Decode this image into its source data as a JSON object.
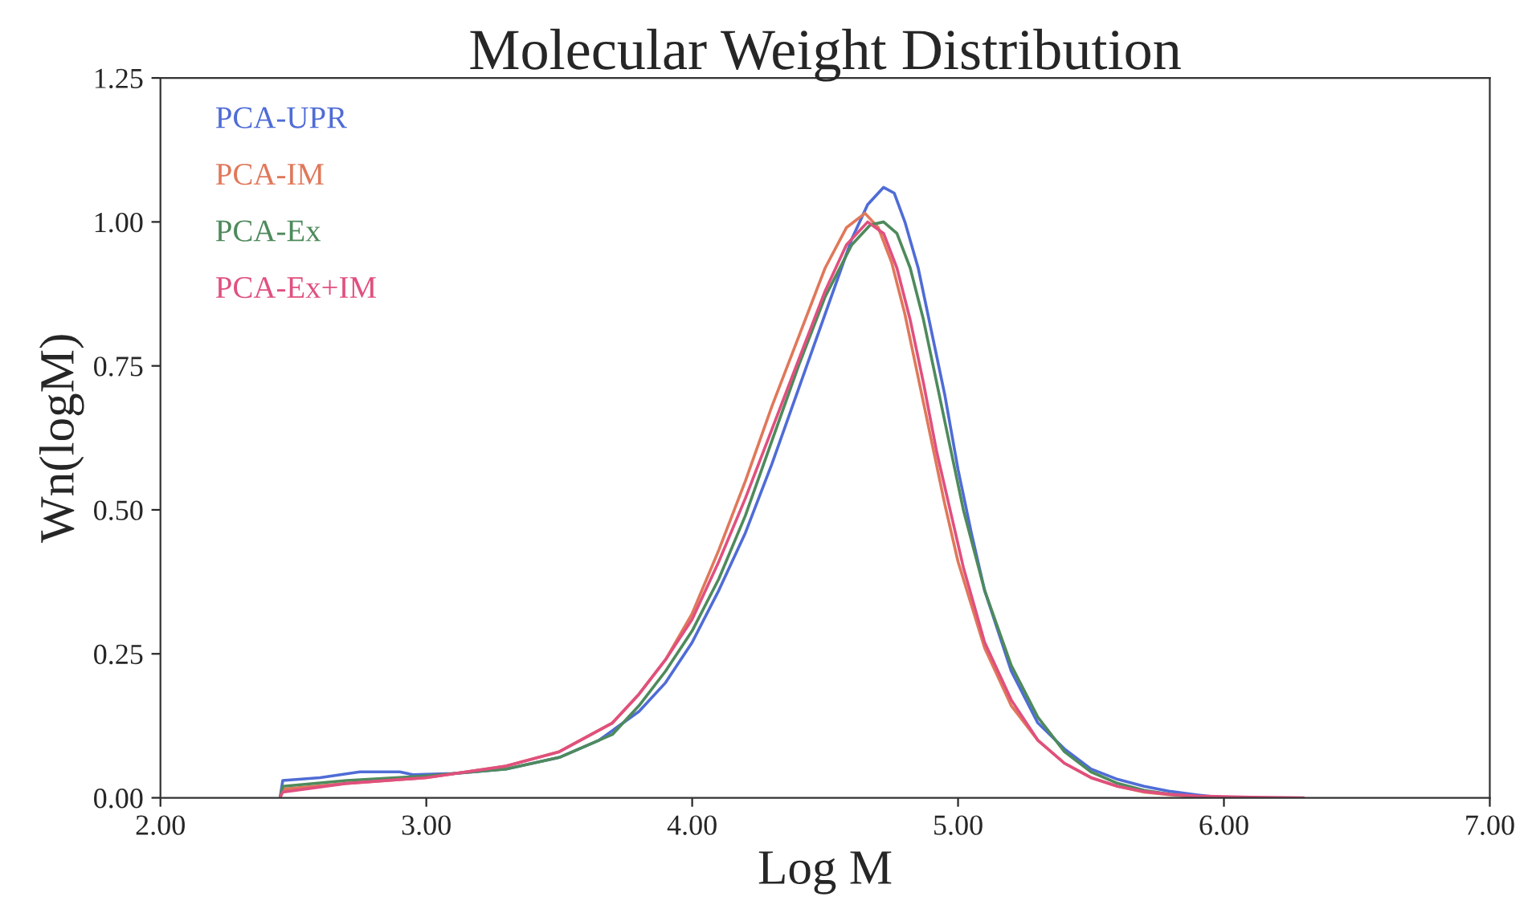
{
  "chart_data": {
    "type": "line",
    "title": "Molecular Weight Distribution",
    "xlabel": "Log M",
    "ylabel": "Wn(logM)",
    "xlim": [
      2,
      7
    ],
    "xticks": [
      {
        "value": 2,
        "label": "2.00"
      },
      {
        "value": 3,
        "label": "3.00"
      },
      {
        "value": 4,
        "label": "4.00"
      },
      {
        "value": 5,
        "label": "5.00"
      },
      {
        "value": 6,
        "label": "6.00"
      },
      {
        "value": 7,
        "label": "7.00"
      }
    ],
    "ylim": [
      0,
      1.25
    ],
    "yticks": [
      {
        "value": 0,
        "label": "0.00"
      },
      {
        "value": 0.25,
        "label": "0.25"
      },
      {
        "value": 0.5,
        "label": "0.50"
      },
      {
        "value": 0.75,
        "label": "0.75"
      },
      {
        "value": 1,
        "label": "1.00"
      },
      {
        "value": 1.25,
        "label": "1.25"
      }
    ],
    "grid": false,
    "legend": "top left",
    "marker": "none",
    "line_style": "solid",
    "series": [
      {
        "name": "PCA-UPR",
        "color": "#4f6cd6",
        "x": [
          2.45,
          2.46,
          2.6,
          2.75,
          2.9,
          2.95,
          3.1,
          3.3,
          3.5,
          3.65,
          3.8,
          3.9,
          4.0,
          4.1,
          4.2,
          4.3,
          4.4,
          4.5,
          4.6,
          4.66,
          4.72,
          4.76,
          4.8,
          4.85,
          4.9,
          4.95,
          5.0,
          5.05,
          5.1,
          5.2,
          5.3,
          5.4,
          5.5,
          5.6,
          5.7,
          5.8,
          5.9,
          6.0
        ],
        "values": [
          0.0,
          0.03,
          0.035,
          0.045,
          0.045,
          0.04,
          0.042,
          0.05,
          0.07,
          0.1,
          0.15,
          0.2,
          0.27,
          0.36,
          0.46,
          0.58,
          0.71,
          0.84,
          0.97,
          1.03,
          1.06,
          1.05,
          1.0,
          0.92,
          0.81,
          0.7,
          0.57,
          0.46,
          0.36,
          0.22,
          0.13,
          0.085,
          0.05,
          0.032,
          0.02,
          0.011,
          0.005,
          0.0
        ]
      },
      {
        "name": "PCA-IM",
        "color": "#e0785a",
        "x": [
          2.45,
          2.46,
          2.7,
          3.0,
          3.3,
          3.5,
          3.7,
          3.8,
          3.9,
          4.0,
          4.1,
          4.2,
          4.3,
          4.4,
          4.5,
          4.58,
          4.65,
          4.7,
          4.75,
          4.8,
          4.85,
          4.9,
          4.95,
          5.0,
          5.1,
          5.2,
          5.3,
          5.4,
          5.5,
          5.6,
          5.7,
          5.8,
          5.9,
          6.0,
          6.1
        ],
        "values": [
          0.0,
          0.015,
          0.025,
          0.035,
          0.055,
          0.08,
          0.13,
          0.18,
          0.24,
          0.32,
          0.43,
          0.55,
          0.68,
          0.8,
          0.92,
          0.99,
          1.015,
          0.99,
          0.93,
          0.84,
          0.73,
          0.62,
          0.51,
          0.41,
          0.26,
          0.16,
          0.1,
          0.06,
          0.035,
          0.02,
          0.01,
          0.005,
          0.002,
          0.001,
          0.0
        ]
      },
      {
        "name": "PCA-Ex",
        "color": "#4e8a5c",
        "x": [
          2.45,
          2.46,
          2.7,
          3.0,
          3.3,
          3.5,
          3.7,
          3.8,
          3.9,
          4.0,
          4.1,
          4.2,
          4.3,
          4.4,
          4.5,
          4.6,
          4.67,
          4.72,
          4.77,
          4.82,
          4.87,
          4.92,
          4.97,
          5.02,
          5.1,
          5.2,
          5.3,
          5.4,
          5.5,
          5.6,
          5.7,
          5.8,
          5.9,
          6.0
        ],
        "values": [
          0.0,
          0.02,
          0.03,
          0.038,
          0.05,
          0.07,
          0.11,
          0.16,
          0.22,
          0.29,
          0.38,
          0.49,
          0.62,
          0.75,
          0.87,
          0.96,
          0.995,
          1.0,
          0.98,
          0.92,
          0.83,
          0.72,
          0.61,
          0.5,
          0.36,
          0.23,
          0.14,
          0.08,
          0.045,
          0.025,
          0.013,
          0.006,
          0.002,
          0.0
        ]
      },
      {
        "name": "PCA-Ex+IM",
        "color": "#e0507e",
        "x": [
          2.45,
          2.46,
          2.7,
          3.0,
          3.3,
          3.5,
          3.7,
          3.8,
          3.9,
          4.0,
          4.1,
          4.2,
          4.3,
          4.4,
          4.5,
          4.58,
          4.66,
          4.72,
          4.77,
          4.82,
          4.87,
          4.92,
          4.97,
          5.02,
          5.1,
          5.2,
          5.3,
          5.4,
          5.5,
          5.6,
          5.7,
          5.8,
          5.9,
          6.0,
          6.1,
          6.3
        ],
        "values": [
          0.0,
          0.01,
          0.025,
          0.035,
          0.055,
          0.08,
          0.13,
          0.18,
          0.24,
          0.31,
          0.41,
          0.52,
          0.64,
          0.76,
          0.88,
          0.96,
          1.0,
          0.98,
          0.92,
          0.83,
          0.72,
          0.6,
          0.5,
          0.4,
          0.27,
          0.17,
          0.1,
          0.06,
          0.035,
          0.02,
          0.011,
          0.006,
          0.003,
          0.002,
          0.001,
          0.0
        ]
      }
    ]
  }
}
